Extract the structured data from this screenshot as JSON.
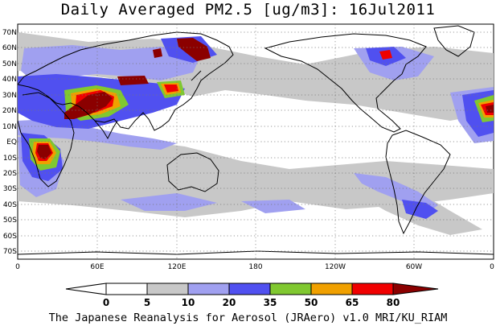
{
  "title": "Daily Averaged PM2.5 [ug/m3]: 16Jul2011",
  "footer": "The Japanese Reanalysis for Aerosol (JRAero) v1.0 MRI/KU_RIAM",
  "map": {
    "projection": "equirectangular",
    "lon_range": [
      0,
      360
    ],
    "lat_range": [
      -75,
      75
    ],
    "lat_labels": [
      "70N",
      "60N",
      "50N",
      "40N",
      "30N",
      "20N",
      "10N",
      "EQ",
      "10S",
      "20S",
      "30S",
      "40S",
      "50S",
      "60S",
      "70S"
    ],
    "lon_labels": [
      "0",
      "60E",
      "120E",
      "180",
      "120W",
      "60W",
      "0"
    ],
    "gridlines": true
  },
  "colorbar": {
    "levels": [
      "0",
      "5",
      "10",
      "20",
      "35",
      "50",
      "65",
      "80"
    ],
    "colors": [
      "#ffffff",
      "#c8c8c8",
      "#a0a0f0",
      "#5050f0",
      "#80c830",
      "#f0a000",
      "#f00000",
      "#8b0000"
    ]
  }
}
